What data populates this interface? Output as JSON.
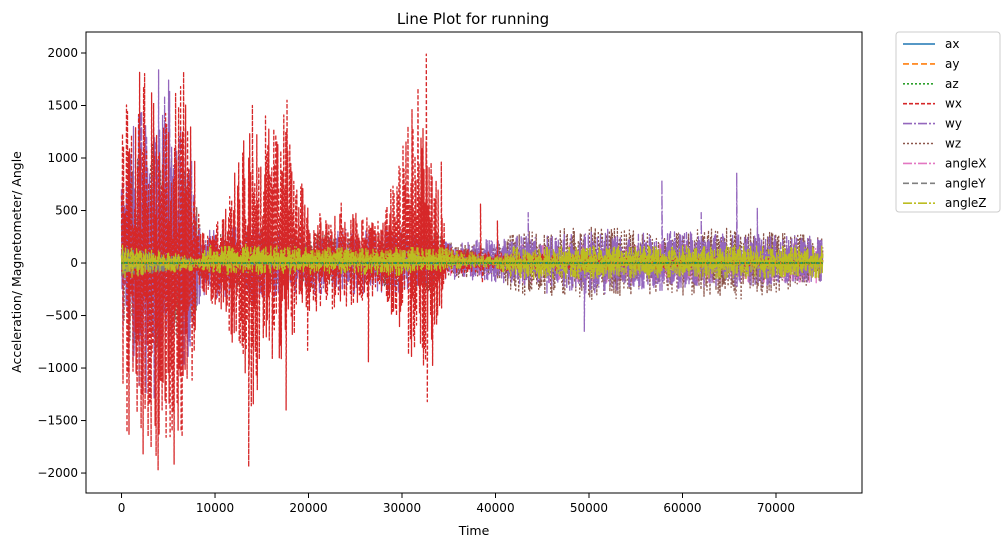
{
  "chart_data": {
    "type": "line",
    "title": "Line Plot for running",
    "xlabel": "Time",
    "ylabel": "Acceleration/ Magnetometer/ Angle",
    "xlim": [
      -3800,
      79200
    ],
    "ylim": [
      -2190,
      2200
    ],
    "x_ticks": [
      0,
      10000,
      20000,
      30000,
      40000,
      50000,
      60000,
      70000
    ],
    "x_tick_labels": [
      "0",
      "10000",
      "20000",
      "30000",
      "40000",
      "50000",
      "60000",
      "70000"
    ],
    "y_ticks": [
      -2000,
      -1500,
      -1000,
      -500,
      0,
      500,
      1000,
      1500,
      2000
    ],
    "y_tick_labels": [
      "−2000",
      "−1500",
      "−1000",
      "−500",
      "0",
      "500",
      "1000",
      "1500",
      "2000"
    ],
    "grid": false,
    "legend_position": "outside-right",
    "series": [
      {
        "name": "angleX",
        "color": "#e377c2",
        "dash": "9,2,2,2",
        "envelope": [
          [
            0,
            -200,
            200
          ],
          [
            8500,
            -200,
            200
          ],
          [
            8500,
            -130,
            130
          ],
          [
            42000,
            -130,
            130
          ],
          [
            42500,
            -190,
            190
          ],
          [
            75000,
            -190,
            190
          ]
        ]
      },
      {
        "name": "wz",
        "color": "#8c564b",
        "dash": "2,2",
        "envelope": [
          [
            0,
            -700,
            900
          ],
          [
            2000,
            -900,
            1200
          ],
          [
            4000,
            -1000,
            1300
          ],
          [
            6000,
            -900,
            1200
          ],
          [
            8000,
            -500,
            600
          ],
          [
            9000,
            -200,
            250
          ],
          [
            14000,
            -300,
            350
          ],
          [
            18000,
            -250,
            300
          ],
          [
            22000,
            -250,
            300
          ],
          [
            26000,
            -200,
            250
          ],
          [
            30000,
            -250,
            300
          ],
          [
            33000,
            -300,
            400
          ],
          [
            35000,
            -150,
            200
          ],
          [
            40000,
            -120,
            150
          ],
          [
            42000,
            -300,
            300
          ],
          [
            50000,
            -350,
            350
          ],
          [
            58000,
            -300,
            300
          ],
          [
            66000,
            -350,
            350
          ],
          [
            75000,
            -200,
            250
          ]
        ]
      },
      {
        "name": "wy",
        "color": "#9467bd",
        "dash": "9,2,2,2",
        "envelope": [
          [
            0,
            -800,
            1000
          ],
          [
            2000,
            -1200,
            1500
          ],
          [
            3500,
            -1300,
            1900
          ],
          [
            5500,
            -1300,
            1800
          ],
          [
            7000,
            -1000,
            1400
          ],
          [
            8500,
            -300,
            300
          ],
          [
            14000,
            -400,
            400
          ],
          [
            20000,
            -300,
            300
          ],
          [
            30000,
            -300,
            350
          ],
          [
            35000,
            -150,
            200
          ],
          [
            42000,
            -200,
            250
          ],
          [
            50000,
            -300,
            300
          ],
          [
            60000,
            -250,
            300
          ],
          [
            75000,
            -200,
            250
          ]
        ],
        "spikes": [
          [
            43500,
            480
          ],
          [
            45500,
            -300
          ],
          [
            49500,
            -650
          ],
          [
            52000,
            320
          ],
          [
            57800,
            790
          ],
          [
            62000,
            480
          ],
          [
            65800,
            860
          ],
          [
            68000,
            520
          ],
          [
            72000,
            260
          ]
        ]
      },
      {
        "name": "wx",
        "color": "#d62728",
        "dash": "4,2",
        "envelope": [
          [
            0,
            -1500,
            2000
          ],
          [
            1000,
            -1700,
            1900
          ],
          [
            3000,
            -2000,
            1800
          ],
          [
            5000,
            -2000,
            1950
          ],
          [
            6500,
            -1800,
            2000
          ],
          [
            7500,
            -1200,
            1400
          ],
          [
            8500,
            -300,
            300
          ],
          [
            11000,
            -500,
            500
          ],
          [
            14000,
            -1500,
            1500
          ],
          [
            15500,
            -1000,
            1300
          ],
          [
            17500,
            -900,
            1500
          ],
          [
            20000,
            -500,
            500
          ],
          [
            25000,
            -400,
            500
          ],
          [
            28000,
            -300,
            400
          ],
          [
            32500,
            -1300,
            2000
          ],
          [
            33500,
            -900,
            900
          ],
          [
            35000,
            -100,
            150
          ],
          [
            40000,
            -80,
            100
          ],
          [
            75000,
            -30,
            30
          ]
        ],
        "spikes": [
          [
            10800,
            410
          ],
          [
            10900,
            -370
          ],
          [
            13600,
            -1940
          ],
          [
            14000,
            1500
          ],
          [
            15400,
            1400
          ],
          [
            17600,
            -1400
          ],
          [
            17700,
            1550
          ],
          [
            19900,
            -830
          ],
          [
            21300,
            430
          ],
          [
            23500,
            570
          ],
          [
            26400,
            -940
          ],
          [
            28800,
            700
          ],
          [
            32600,
            1990
          ],
          [
            32700,
            -1320
          ],
          [
            34200,
            960
          ],
          [
            38400,
            560
          ],
          [
            38600,
            -190
          ],
          [
            40200,
            400
          ]
        ]
      },
      {
        "name": "angleY",
        "color": "#7f7f7f",
        "dash": "6,3",
        "envelope": [
          [
            0,
            -150,
            150
          ],
          [
            8500,
            -30,
            30
          ],
          [
            75000,
            -20,
            20
          ]
        ]
      },
      {
        "name": "angleZ",
        "color": "#bcbd22",
        "dash": "9,2,2,2",
        "envelope": [
          [
            0,
            -150,
            180
          ],
          [
            8500,
            -60,
            60
          ],
          [
            9000,
            -100,
            170
          ],
          [
            14000,
            -120,
            180
          ],
          [
            22000,
            -100,
            150
          ],
          [
            30000,
            -120,
            150
          ],
          [
            34000,
            -80,
            150
          ],
          [
            40000,
            -50,
            60
          ],
          [
            42000,
            -150,
            160
          ],
          [
            75000,
            -150,
            170
          ]
        ]
      },
      {
        "name": "ax",
        "color": "#1f77b4",
        "dash": "",
        "envelope": [
          [
            0,
            -5,
            5
          ],
          [
            75000,
            -5,
            5
          ]
        ]
      },
      {
        "name": "ay",
        "color": "#ff7f0e",
        "dash": "6,3",
        "envelope": [
          [
            0,
            -5,
            5
          ],
          [
            75000,
            -5,
            5
          ]
        ]
      },
      {
        "name": "az",
        "color": "#2ca02c",
        "dash": "2,2",
        "envelope": [
          [
            0,
            -5,
            5
          ],
          [
            75000,
            -5,
            5
          ]
        ]
      }
    ],
    "legend": [
      {
        "name": "ax",
        "color": "#1f77b4",
        "dash": ""
      },
      {
        "name": "ay",
        "color": "#ff7f0e",
        "dash": "6,3"
      },
      {
        "name": "az",
        "color": "#2ca02c",
        "dash": "2,2"
      },
      {
        "name": "wx",
        "color": "#d62728",
        "dash": "4,2"
      },
      {
        "name": "wy",
        "color": "#9467bd",
        "dash": "9,2,2,2"
      },
      {
        "name": "wz",
        "color": "#8c564b",
        "dash": "2,2"
      },
      {
        "name": "angleX",
        "color": "#e377c2",
        "dash": "9,2,2,2"
      },
      {
        "name": "angleY",
        "color": "#7f7f7f",
        "dash": "6,3"
      },
      {
        "name": "angleZ",
        "color": "#bcbd22",
        "dash": "9,2,2,2"
      }
    ]
  }
}
